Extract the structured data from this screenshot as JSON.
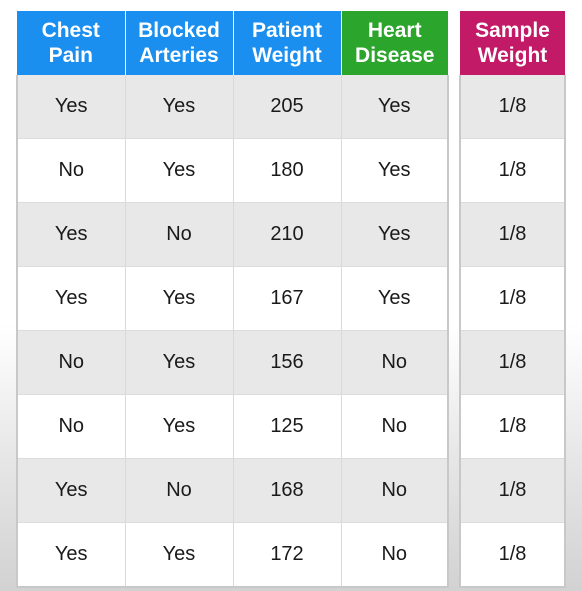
{
  "colors": {
    "feature_header_bg": "#1a8ff0",
    "target_header_bg": "#2ba52b",
    "sample_weight_header_bg": "#c21a66",
    "row_alt_bg": "#e8e8e8",
    "row_bg": "#ffffff"
  },
  "table": {
    "headers": [
      {
        "line1": "Chest",
        "line2": "Pain"
      },
      {
        "line1": "Blocked",
        "line2": "Arteries"
      },
      {
        "line1": "Patient",
        "line2": "Weight"
      },
      {
        "line1": "Heart",
        "line2": "Disease"
      }
    ],
    "rows": [
      [
        "Yes",
        "Yes",
        "205",
        "Yes"
      ],
      [
        "No",
        "Yes",
        "180",
        "Yes"
      ],
      [
        "Yes",
        "No",
        "210",
        "Yes"
      ],
      [
        "Yes",
        "Yes",
        "167",
        "Yes"
      ],
      [
        "No",
        "Yes",
        "156",
        "No"
      ],
      [
        "No",
        "Yes",
        "125",
        "No"
      ],
      [
        "Yes",
        "No",
        "168",
        "No"
      ],
      [
        "Yes",
        "Yes",
        "172",
        "No"
      ]
    ]
  },
  "sample_weight": {
    "header": {
      "line1": "Sample",
      "line2": "Weight"
    },
    "values": [
      "1/8",
      "1/8",
      "1/8",
      "1/8",
      "1/8",
      "1/8",
      "1/8",
      "1/8"
    ]
  }
}
